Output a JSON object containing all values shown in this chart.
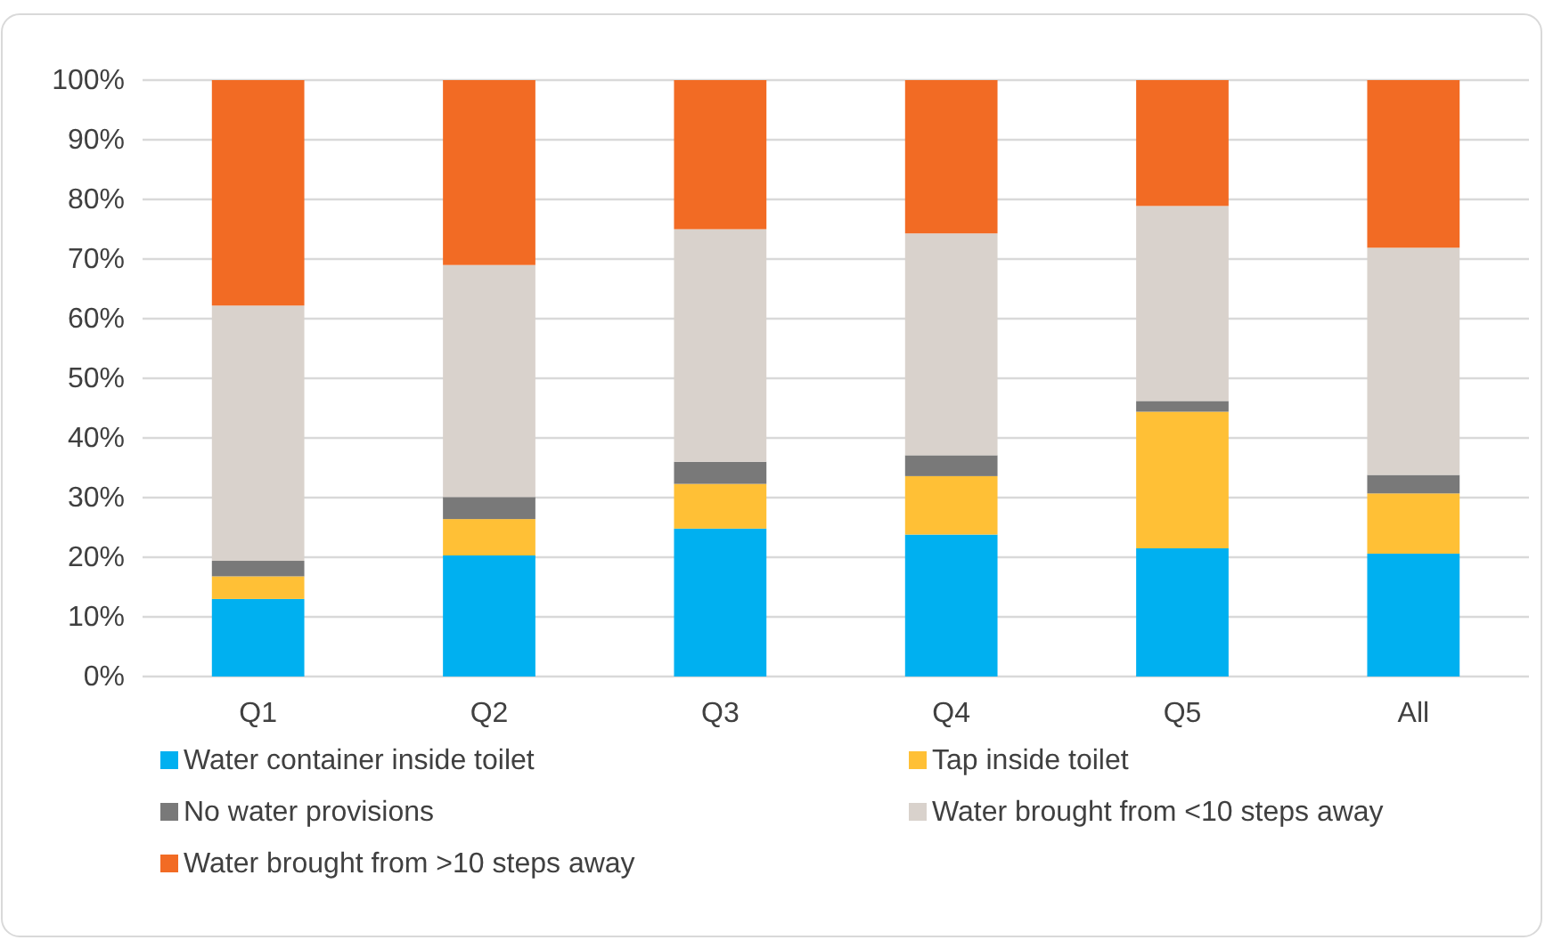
{
  "chart_data": {
    "type": "bar",
    "stacked": true,
    "categories": [
      "Q1",
      "Q2",
      "Q3",
      "Q4",
      "Q5",
      "All"
    ],
    "series": [
      {
        "name": "Water container inside toilet",
        "color": "#00b0f0",
        "values": [
          13.0,
          20.3,
          24.8,
          23.8,
          21.5,
          20.6
        ]
      },
      {
        "name": "Tap inside toilet",
        "color": "#ffc036",
        "values": [
          3.8,
          6.1,
          7.5,
          9.8,
          22.9,
          10.1
        ]
      },
      {
        "name": "No water provisions",
        "color": "#797979",
        "values": [
          2.6,
          3.7,
          3.7,
          3.5,
          1.8,
          3.1
        ]
      },
      {
        "name": "Water brought from <10 steps away",
        "color": "#d9d2cc",
        "values": [
          42.8,
          38.9,
          39.0,
          37.2,
          32.7,
          38.1
        ]
      },
      {
        "name": "Water brought from >10 steps away",
        "color": "#f26b24",
        "values": [
          37.8,
          31.0,
          25.0,
          25.7,
          21.1,
          28.1
        ]
      }
    ],
    "ylim": [
      0,
      100
    ],
    "yticks": [
      {
        "value": 0,
        "label": "0%"
      },
      {
        "value": 10,
        "label": "10%"
      },
      {
        "value": 20,
        "label": "20%"
      },
      {
        "value": 30,
        "label": "30%"
      },
      {
        "value": 40,
        "label": "40%"
      },
      {
        "value": 50,
        "label": "50%"
      },
      {
        "value": 60,
        "label": "60%"
      },
      {
        "value": 70,
        "label": "70%"
      },
      {
        "value": 80,
        "label": "80%"
      },
      {
        "value": 90,
        "label": "90%"
      },
      {
        "value": 100,
        "label": "100%"
      }
    ],
    "grid": "y",
    "legend": "bottom"
  }
}
